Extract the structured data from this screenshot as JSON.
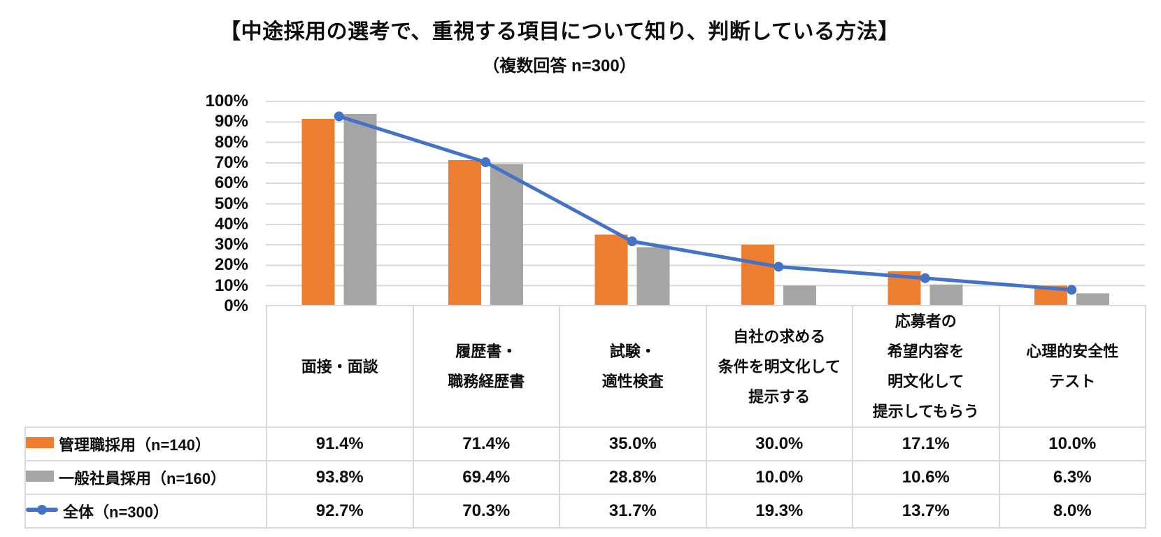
{
  "title": "【中途採用の選考で、重視する項目について知り、判断している方法】",
  "subtitle": "（複数回答 n=300）",
  "chart_data": {
    "type": "bar",
    "subtype": "grouped-bars-with-line-overlay-and-data-table",
    "categories": [
      [
        "面接・面談"
      ],
      [
        "履歴書・",
        "職務経歴書"
      ],
      [
        "試験・",
        "適性検査"
      ],
      [
        "自社の求める",
        "条件を明文化して",
        "提示する"
      ],
      [
        "応募者の",
        "希望内容を",
        "明文化して",
        "提示してもらう"
      ],
      [
        "心理的安全性",
        "テスト"
      ]
    ],
    "y_axis": {
      "min": 0,
      "max": 100,
      "tick_step": 10,
      "ticks": [
        "100%",
        "90%",
        "80%",
        "70%",
        "60%",
        "50%",
        "40%",
        "30%",
        "20%",
        "10%",
        "0%"
      ],
      "grid": true
    },
    "series": [
      {
        "name": "管理職採用（n=140）",
        "type": "bar",
        "color": "#ED7D31",
        "values": [
          91.4,
          71.4,
          35.0,
          30.0,
          17.1,
          10.0
        ],
        "labels": [
          "91.4%",
          "71.4%",
          "35.0%",
          "30.0%",
          "17.1%",
          "10.0%"
        ]
      },
      {
        "name": "一般社員採用（n=160）",
        "type": "bar",
        "color": "#A5A5A5",
        "values": [
          93.8,
          69.4,
          28.8,
          10.0,
          10.6,
          6.3
        ],
        "labels": [
          "93.8%",
          "69.4%",
          "28.8%",
          "10.0%",
          "10.6%",
          "6.3%"
        ]
      },
      {
        "name": "全体（n=300）",
        "type": "line",
        "color": "#4472C4",
        "values": [
          92.7,
          70.3,
          31.7,
          19.3,
          13.7,
          8.0
        ],
        "labels": [
          "92.7%",
          "70.3%",
          "31.7%",
          "19.3%",
          "13.7%",
          "8.0%"
        ]
      }
    ],
    "legend_position": "table-left",
    "colors": {
      "grid": "#D9D9D9",
      "table_border": "#D9D9D9",
      "text": "#0d0d0d",
      "background": "#ffffff"
    }
  }
}
